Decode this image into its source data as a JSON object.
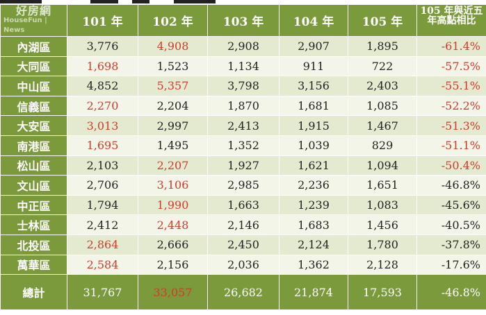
{
  "watermark": {
    "brand": "好房網",
    "sub": "HouseFun | News"
  },
  "headers": [
    "",
    "101 年",
    "102 年",
    "103 年",
    "104 年",
    "105 年",
    "105 年與近五年高點相比"
  ],
  "rows": [
    {
      "region": "內湖區",
      "values": [
        "3,776",
        "4,908",
        "2,908",
        "2,907",
        "1,895"
      ],
      "pct": "-61.4%",
      "red": [
        1
      ],
      "pct_red": true
    },
    {
      "region": "大同區",
      "values": [
        "1,698",
        "1,523",
        "1,134",
        "911",
        "722"
      ],
      "pct": "-57.5%",
      "red": [
        0
      ],
      "pct_red": true
    },
    {
      "region": "中山區",
      "values": [
        "4,852",
        "5,357",
        "3,798",
        "3,156",
        "2,403"
      ],
      "pct": "-55.1%",
      "red": [
        1
      ],
      "pct_red": true
    },
    {
      "region": "信義區",
      "values": [
        "2,270",
        "2,204",
        "1,870",
        "1,681",
        "1,085"
      ],
      "pct": "-52.2%",
      "red": [
        0
      ],
      "pct_red": true
    },
    {
      "region": "大安區",
      "values": [
        "3,013",
        "2,997",
        "2,413",
        "1,915",
        "1,467"
      ],
      "pct": "-51.3%",
      "red": [
        0
      ],
      "pct_red": true
    },
    {
      "region": "南港區",
      "values": [
        "1,695",
        "1,495",
        "1,352",
        "1,039",
        "829"
      ],
      "pct": "-51.1%",
      "red": [
        0
      ],
      "pct_red": true
    },
    {
      "region": "松山區",
      "values": [
        "2,103",
        "2,207",
        "1,927",
        "1,621",
        "1,094"
      ],
      "pct": "-50.4%",
      "red": [
        1
      ],
      "pct_red": true
    },
    {
      "region": "文山區",
      "values": [
        "2,706",
        "3,106",
        "2,985",
        "2,236",
        "1,651"
      ],
      "pct": "-46.8%",
      "red": [
        1
      ],
      "pct_red": false
    },
    {
      "region": "中正區",
      "values": [
        "1,794",
        "1,990",
        "1,663",
        "1,239",
        "1,083"
      ],
      "pct": "-45.6%",
      "red": [
        1
      ],
      "pct_red": false
    },
    {
      "region": "士林區",
      "values": [
        "2,412",
        "2,448",
        "2,146",
        "1,683",
        "1,456"
      ],
      "pct": "-40.5%",
      "red": [
        1
      ],
      "pct_red": false
    },
    {
      "region": "北投區",
      "values": [
        "2,864",
        "2,666",
        "2,450",
        "2,124",
        "1,780"
      ],
      "pct": "-37.8%",
      "red": [
        0
      ],
      "pct_red": false
    },
    {
      "region": "萬華區",
      "values": [
        "2,584",
        "2,156",
        "2,036",
        "1,362",
        "2,128"
      ],
      "pct": "-17.6%",
      "red": [
        0
      ],
      "pct_red": false
    }
  ],
  "total": {
    "label": "總計",
    "values": [
      "31,767",
      "33,057",
      "26,682",
      "21,874",
      "17,593"
    ],
    "pct": "-46.8%",
    "red": [
      1
    ]
  },
  "colors": {
    "header_green": "#7a9a3c",
    "row_light": "#e3ead0",
    "row_lighter": "#f2f5e8",
    "highlight_red": "#d23a2a"
  }
}
